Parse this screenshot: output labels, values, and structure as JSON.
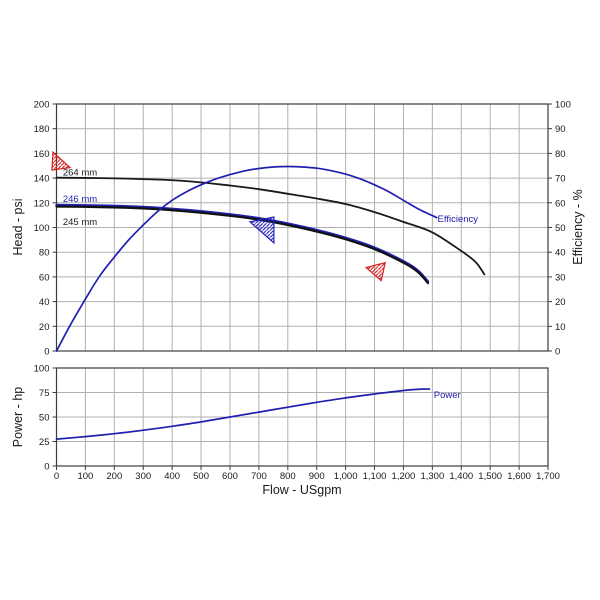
{
  "page": {
    "background": "#ffffff"
  },
  "colors": {
    "curve_blue": "#2020b0",
    "curve_black": "#1a1a1a",
    "marker_red": "#d42020",
    "marker_blue": "#2020c0",
    "grid": "#b0b0b0"
  },
  "chart_data": [
    {
      "id": "head-efficiency-chart",
      "type": "line",
      "title": "",
      "xlabel": "",
      "ylabel_left": "Head - psi",
      "ylabel_right": "Efficiency - %",
      "xlim": [
        0,
        1700
      ],
      "x_step": 100,
      "ylim_left": [
        0,
        200
      ],
      "ylim_right": [
        0,
        100
      ],
      "grid": true,
      "x_ticks": [],
      "y_ticks_left": [
        "0",
        "20",
        "40",
        "60",
        "80",
        "100",
        "120",
        "140",
        "160",
        "180",
        "200"
      ],
      "y_ticks_right": [
        "0",
        "10",
        "20",
        "30",
        "40",
        "50",
        "60",
        "70",
        "80",
        "90",
        "100"
      ],
      "series": [
        {
          "name": "264 mm",
          "axis": "left",
          "color": "#1a1a1a",
          "width": 1.8,
          "points": [
            [
              0,
              140.3
            ],
            [
              150,
              140
            ],
            [
              300,
              139.2
            ],
            [
              450,
              137.6
            ],
            [
              600,
              134
            ],
            [
              700,
              131
            ],
            [
              800,
              127.3
            ],
            [
              900,
              123.5
            ],
            [
              1000,
              119
            ],
            [
              1100,
              112.5
            ],
            [
              1200,
              104.5
            ],
            [
              1300,
              96
            ],
            [
              1400,
              81
            ],
            [
              1450,
              72
            ],
            [
              1480,
              62
            ]
          ]
        },
        {
          "name": "246 mm",
          "axis": "left",
          "color": "#2020b0",
          "width": 2.4,
          "points": [
            [
              0,
              118.2
            ],
            [
              150,
              117.7
            ],
            [
              300,
              116.7
            ],
            [
              450,
              114.2
            ],
            [
              600,
              110.7
            ],
            [
              700,
              107.5
            ],
            [
              800,
              103.2
            ],
            [
              900,
              98
            ],
            [
              1000,
              91.7
            ],
            [
              1100,
              83.7
            ],
            [
              1200,
              72.7
            ],
            [
              1250,
              65.2
            ],
            [
              1285,
              56.2
            ]
          ]
        },
        {
          "name": "245 mm",
          "axis": "left",
          "color": "#111111",
          "width": 2.2,
          "points": [
            [
              0,
              117
            ],
            [
              150,
              116.5
            ],
            [
              300,
              115.5
            ],
            [
              450,
              113
            ],
            [
              600,
              109.5
            ],
            [
              700,
              106.3
            ],
            [
              800,
              102
            ],
            [
              900,
              96.8
            ],
            [
              1000,
              90.5
            ],
            [
              1100,
              82.5
            ],
            [
              1200,
              71.5
            ],
            [
              1250,
              64
            ],
            [
              1285,
              55
            ]
          ]
        },
        {
          "name": "Efficiency",
          "axis": "right",
          "color": "#2020b0",
          "width": 1.7,
          "points": [
            [
              0,
              0
            ],
            [
              50,
              11
            ],
            [
              100,
              21
            ],
            [
              150,
              30.5
            ],
            [
              200,
              38
            ],
            [
              250,
              45
            ],
            [
              300,
              51
            ],
            [
              350,
              56.5
            ],
            [
              400,
              61
            ],
            [
              450,
              64.5
            ],
            [
              500,
              67.3
            ],
            [
              550,
              69.6
            ],
            [
              600,
              71.4
            ],
            [
              650,
              72.9
            ],
            [
              700,
              73.9
            ],
            [
              750,
              74.5
            ],
            [
              800,
              74.7
            ],
            [
              850,
              74.5
            ],
            [
              900,
              74
            ],
            [
              950,
              73
            ],
            [
              1000,
              71.6
            ],
            [
              1050,
              69.7
            ],
            [
              1100,
              67.3
            ],
            [
              1150,
              64.4
            ],
            [
              1200,
              61
            ],
            [
              1250,
              57.6
            ],
            [
              1315,
              54
            ]
          ]
        }
      ],
      "labels": [
        {
          "text": "264 mm",
          "x": 22,
          "y": 142,
          "axis": "left",
          "color": "#1a1a1a"
        },
        {
          "text": "246 mm",
          "x": 22,
          "y": 120.5,
          "axis": "left",
          "color": "#2020b0"
        },
        {
          "text": "245 mm",
          "x": 22,
          "y": 102,
          "axis": "left",
          "color": "#1a1a1a"
        },
        {
          "text": "Efficiency",
          "x": 1318,
          "y": 52.3,
          "axis": "right",
          "color": "#2020b0"
        }
      ],
      "markers": [
        {
          "name": "trim-limit-marker-264",
          "color": "#d42020",
          "hatch": "red",
          "points_xy": [
            [
              -12,
              161
            ],
            [
              -16,
              146.5
            ],
            [
              47,
              148.5
            ]
          ]
        },
        {
          "name": "duty-marker-blue",
          "color": "#2020c0",
          "hatch": "blue",
          "points_xy": [
            [
              669,
              104.5
            ],
            [
              752,
              108.5
            ],
            [
              752,
              87.5
            ]
          ]
        },
        {
          "name": "duty-marker-red",
          "color": "#d42020",
          "hatch": "red",
          "points_xy": [
            [
              1071,
              67.5
            ],
            [
              1137,
              71.5
            ],
            [
              1123,
              57
            ]
          ]
        }
      ]
    },
    {
      "id": "power-chart",
      "type": "line",
      "title": "",
      "xlabel": "Flow - USgpm",
      "ylabel_left": "Power - hp",
      "xlim": [
        0,
        1700
      ],
      "x_step": 100,
      "ylim_left": [
        0,
        100
      ],
      "grid": true,
      "x_ticks": [
        "0",
        "100",
        "200",
        "300",
        "400",
        "500",
        "600",
        "700",
        "800",
        "900",
        "1,000",
        "1,100",
        "1,200",
        "1,300",
        "1,400",
        "1,500",
        "1,600",
        "1,700"
      ],
      "y_ticks_left": [
        "0",
        "25",
        "50",
        "75",
        "100"
      ],
      "series": [
        {
          "name": "Power",
          "axis": "left",
          "color": "#2020b0",
          "width": 1.7,
          "points": [
            [
              0,
              27.5
            ],
            [
              100,
              30
            ],
            [
              200,
              33
            ],
            [
              300,
              36.5
            ],
            [
              400,
              40.5
            ],
            [
              500,
              45
            ],
            [
              600,
              50
            ],
            [
              700,
              55
            ],
            [
              800,
              60
            ],
            [
              900,
              65
            ],
            [
              1000,
              69.5
            ],
            [
              1100,
              73.5
            ],
            [
              1200,
              77
            ],
            [
              1260,
              78.5
            ],
            [
              1290,
              78.5
            ]
          ]
        }
      ],
      "labels": [
        {
          "text": "Power",
          "x": 1305,
          "y": 69.5,
          "axis": "left",
          "color": "#2020b0"
        }
      ],
      "markers": []
    }
  ]
}
